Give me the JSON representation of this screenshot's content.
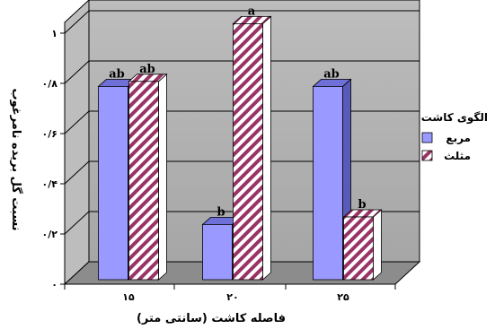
{
  "chart_data": {
    "type": "bar",
    "title": "",
    "xlabel": "فاصله کاشت (سانتی متر)",
    "ylabel": "نسبت گل بریده نامرغوب",
    "categories": [
      "۱۵",
      "۲۰",
      "۲۵"
    ],
    "ylim": [
      0,
      1
    ],
    "yticks": [
      {
        "value": 0,
        "label": "۰"
      },
      {
        "value": 0.2,
        "label": "۰/۲"
      },
      {
        "value": 0.4,
        "label": "۰/۴"
      },
      {
        "value": 0.6,
        "label": "۰/۶"
      },
      {
        "value": 0.8,
        "label": "۰/۸"
      },
      {
        "value": 1,
        "label": "۱"
      }
    ],
    "legend_title": "الگوی کاشت",
    "legend_position": "right",
    "grid": true,
    "series": [
      {
        "name": "مربع",
        "color": "#9999ff",
        "values": [
          0.77,
          0.22,
          0.77
        ],
        "labels": [
          "ab",
          "b",
          "ab"
        ]
      },
      {
        "name": "مثلث",
        "color": "#993366",
        "pattern": "diagonal-hatch",
        "values": [
          0.79,
          1.02,
          0.25
        ],
        "labels": [
          "ab",
          "a",
          "b"
        ]
      }
    ]
  }
}
